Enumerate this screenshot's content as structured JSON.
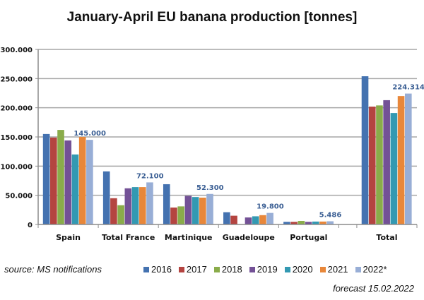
{
  "chart_data": {
    "type": "bar",
    "title": "January-April EU banana production [tonnes]",
    "xlabel": "",
    "ylabel": "",
    "ylim": [
      0,
      300000
    ],
    "yticks": [
      0,
      50000,
      100000,
      150000,
      200000,
      250000,
      300000
    ],
    "ytick_labels": [
      "0",
      "50.000",
      "100.000",
      "150.000",
      "200.000",
      "250.000",
      "300.000"
    ],
    "grid": true,
    "legend_position": "bottom",
    "categories": [
      "Spain",
      "Total France",
      "Martinique",
      "Guadeloupe",
      "Portugal",
      "",
      "Total"
    ],
    "series": [
      {
        "name": "2016",
        "color": "#4472b0",
        "values": [
          155000,
          91000,
          69000,
          21000,
          4500,
          null,
          254000
        ]
      },
      {
        "name": "2017",
        "color": "#b44440",
        "values": [
          149000,
          45000,
          29000,
          15000,
          4500,
          null,
          202000
        ]
      },
      {
        "name": "2018",
        "color": "#8aac4a",
        "values": [
          162000,
          33000,
          31000,
          0,
          6000,
          null,
          204000
        ]
      },
      {
        "name": "2019",
        "color": "#735196",
        "values": [
          144000,
          62000,
          49000,
          12000,
          4500,
          null,
          213000
        ]
      },
      {
        "name": "2020",
        "color": "#3399b2",
        "values": [
          120000,
          64000,
          47000,
          14000,
          5000,
          null,
          191000
        ]
      },
      {
        "name": "2021",
        "color": "#e8873a",
        "values": [
          150000,
          64000,
          46000,
          16000,
          5000,
          null,
          220000
        ]
      },
      {
        "name": "2022*",
        "color": "#98aed6",
        "values": [
          145000,
          72100,
          52300,
          19800,
          5486,
          null,
          224314
        ]
      }
    ],
    "data_labels": [
      {
        "category": "Spain",
        "series": "2022*",
        "text": "145.000"
      },
      {
        "category": "Total France",
        "series": "2022*",
        "text": "72.100"
      },
      {
        "category": "Martinique",
        "series": "2022*",
        "text": "52.300"
      },
      {
        "category": "Guadeloupe",
        "series": "2022*",
        "text": "19.800"
      },
      {
        "category": "Portugal",
        "series": "2022*",
        "text": "5.486"
      },
      {
        "category": "Total",
        "series": "2022*",
        "text": "224.314"
      }
    ]
  },
  "annotations": {
    "source": "source: MS notifications",
    "forecast": "forecast 15.02.2022"
  }
}
